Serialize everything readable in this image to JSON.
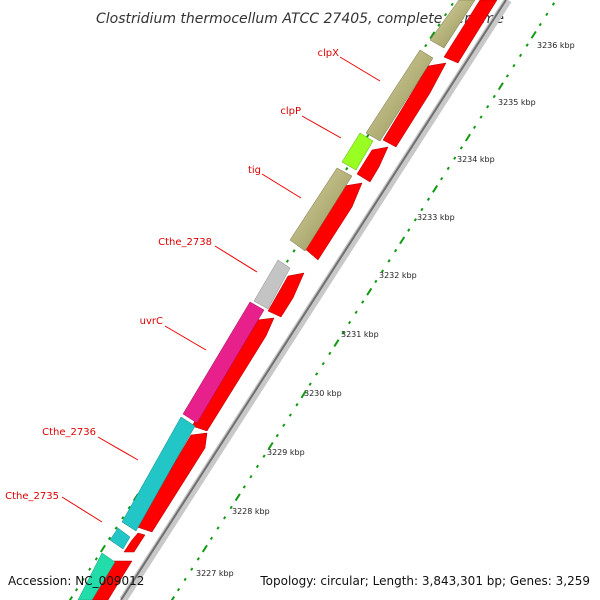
{
  "title": "Clostridium thermocellum ATCC 27405, complete genome",
  "accession": "Accession: NC_009012",
  "topology": "Topology: circular; Length: 3,843,301 bp; Genes: 3,259",
  "colors": {
    "gene_label": "#dd0000",
    "cds_arrow": "#ff0000",
    "backbone": "#888888",
    "tick_dot": "#119911"
  },
  "genes": [
    {
      "label": "clpX",
      "color": "#b5b27a"
    },
    {
      "label": "clpP",
      "color": "#99ff22"
    },
    {
      "label": "tig",
      "color": "#b5b27a"
    },
    {
      "label": "Cthe_2738",
      "color": "#c4c4c4"
    },
    {
      "label": "uvrC",
      "color": "#e8208c"
    },
    {
      "label": "Cthe_2736",
      "color": "#22c6c6"
    },
    {
      "label": "Cthe_2735",
      "color": "#22c6c6"
    }
  ],
  "kbp_ticks": [
    "3236 kbp",
    "3235 kbp",
    "3234 kbp",
    "3233 kbp",
    "3232 kbp",
    "3231 kbp",
    "3230 kbp",
    "3229 kbp",
    "3228 kbp",
    "3227 kbp"
  ]
}
